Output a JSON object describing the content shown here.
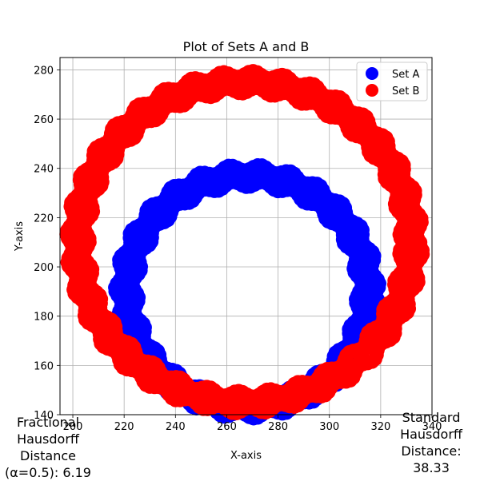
{
  "chart_data": {
    "type": "scatter",
    "title": "Plot of Sets A and B",
    "xlabel": "X-axis",
    "ylabel": "Y-axis",
    "xlim": [
      195,
      340
    ],
    "ylim": [
      140,
      285
    ],
    "xticks": [
      200,
      220,
      240,
      260,
      280,
      300,
      320,
      340
    ],
    "yticks": [
      140,
      160,
      180,
      200,
      220,
      240,
      260,
      280
    ],
    "grid": true,
    "legend_position": "top-right",
    "series": [
      {
        "name": "Set A",
        "color": "#0000ff",
        "shape": "ring",
        "center": [
          268,
          190
        ],
        "inner_radius": 42,
        "outer_radius": 52
      },
      {
        "name": "Set B",
        "color": "#ff0000",
        "shape": "ring",
        "center": [
          267,
          210
        ],
        "inner_radius": 60,
        "outer_radius": 70
      }
    ],
    "annotations": {
      "left": "Fractional\nHausdorff\nDistance\n(α=0.5): 6.19",
      "right": "Standard\nHausdorff\nDistance:\n38.33"
    }
  }
}
